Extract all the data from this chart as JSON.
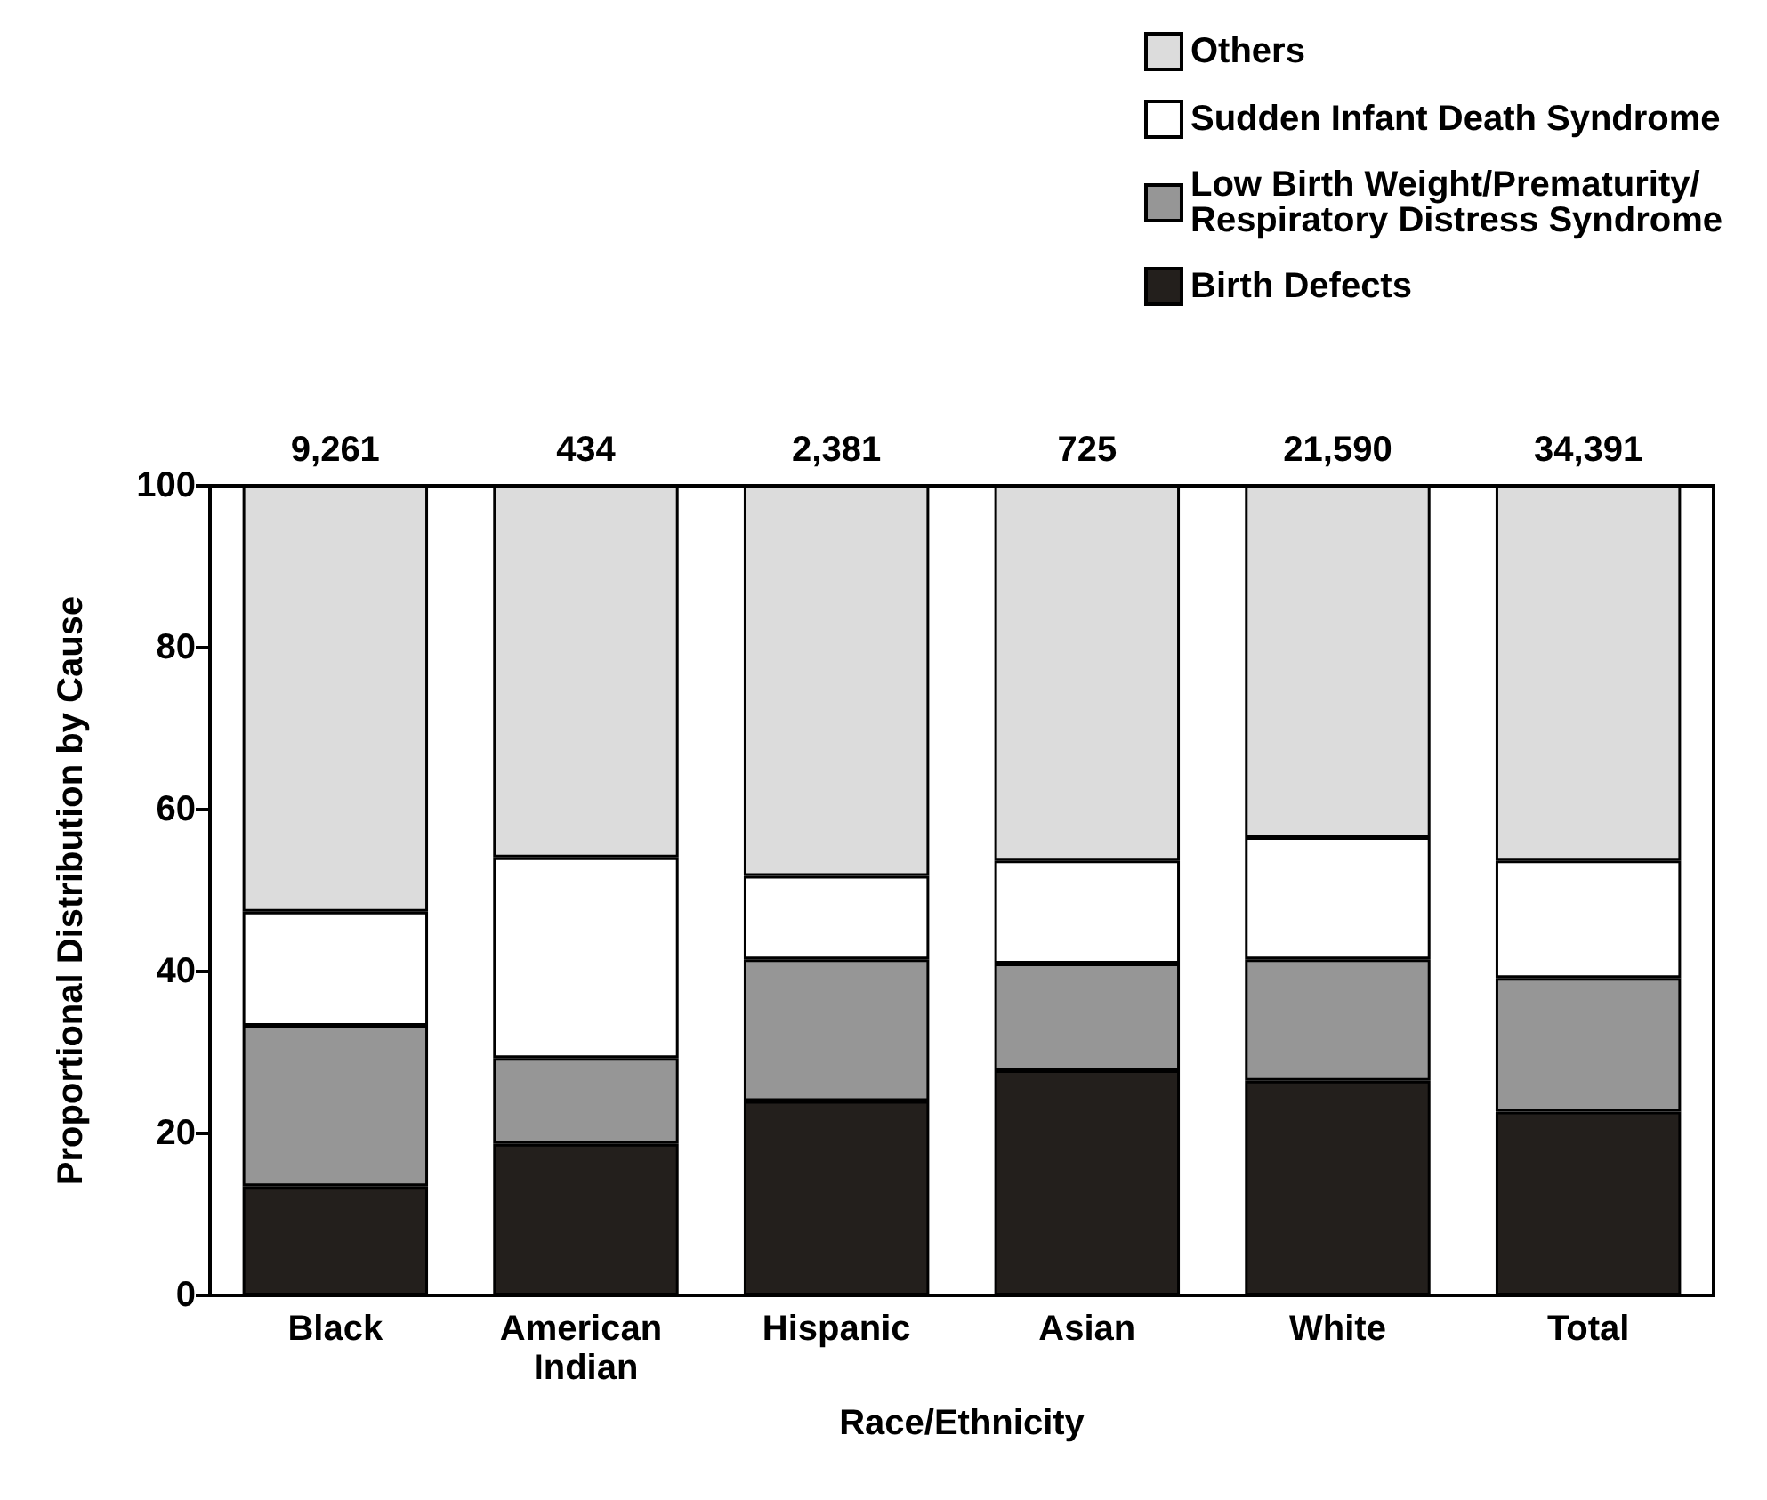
{
  "chart_data": {
    "type": "bar",
    "stacked": true,
    "xlabel": "Race/Ethnicity",
    "ylabel": "Proportional Distribution by Cause",
    "categories": [
      "Black",
      "American Indian",
      "Hispanic",
      "Asian",
      "White",
      "Total"
    ],
    "series": [
      {
        "name": "Birth Defects",
        "color": "#231f1c",
        "values": [
          13.5,
          18.7,
          24,
          27.8,
          26.5,
          22.7
        ]
      },
      {
        "name": "Low Birth Weight/Prematurity/\nRespiratory Distress Syndrome",
        "color": "#969696",
        "values": [
          19.8,
          10.6,
          17.5,
          13.2,
          15,
          16.5
        ]
      },
      {
        "name": "Sudden Infant Death Syndrome",
        "color": "#ffffff",
        "values": [
          14.1,
          24.8,
          10.3,
          12.7,
          15.1,
          14.5
        ]
      },
      {
        "name": "Others",
        "color": "#dcdcdc",
        "values": [
          52.6,
          45.9,
          48.2,
          46.3,
          43.4,
          46.3
        ]
      }
    ],
    "annotations": [
      {
        "text": "9,261",
        "x": "Black",
        "y": 100
      },
      {
        "text": "434",
        "x": "American Indian",
        "y": 100
      },
      {
        "text": "2,381",
        "x": "Hispanic",
        "y": 100
      },
      {
        "text": "725",
        "x": "Asian",
        "y": 100
      },
      {
        "text": "21,590",
        "x": "White",
        "y": 100
      },
      {
        "text": "34,391",
        "x": "Total",
        "y": 100
      }
    ],
    "ylim": [
      0,
      100
    ],
    "yticks": [
      0,
      20,
      40,
      60,
      80,
      100
    ],
    "grid": false,
    "legend": "top right"
  }
}
